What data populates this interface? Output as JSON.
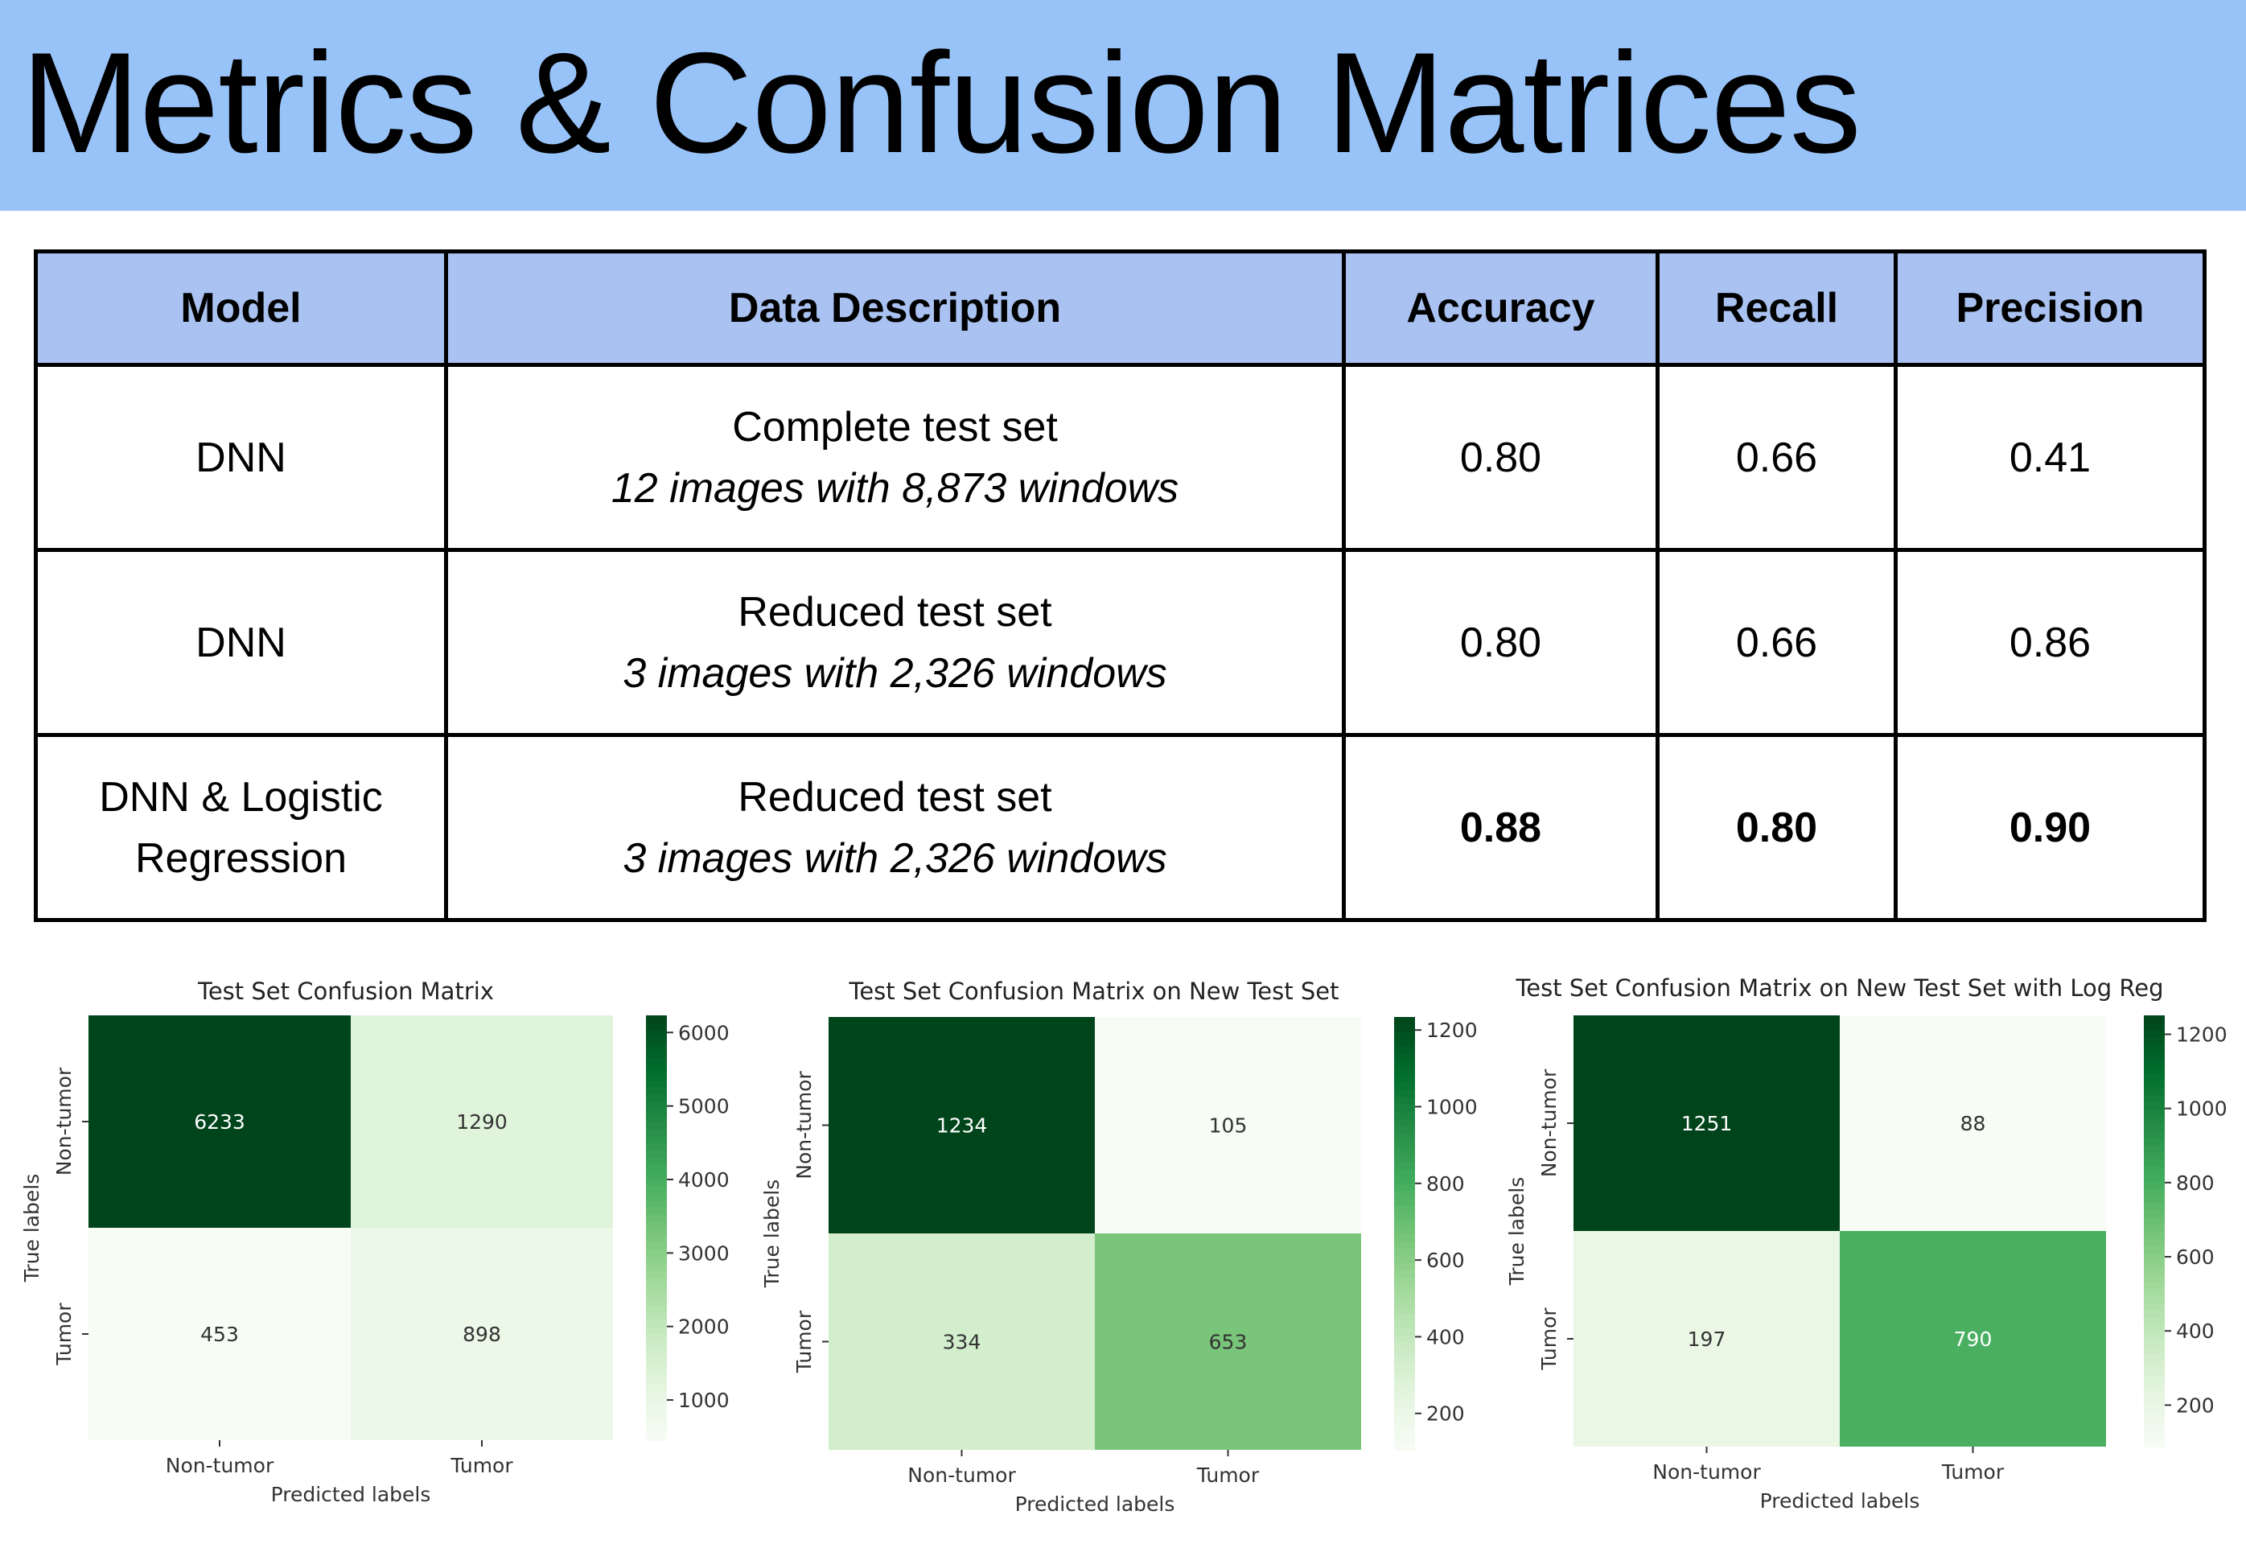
{
  "slide": {
    "title": "Metrics & Confusion Matrices"
  },
  "table": {
    "headers": [
      "Model",
      "Data Description",
      "Accuracy",
      "Recall",
      "Precision"
    ],
    "rows": [
      {
        "model": "DNN",
        "desc_main": "Complete test set",
        "desc_sub": "12 images with 8,873 windows",
        "accuracy": "0.80",
        "recall": "0.66",
        "precision": "0.41",
        "bold": false
      },
      {
        "model": "DNN",
        "desc_main": "Reduced test set",
        "desc_sub": "3 images with 2,326 windows",
        "accuracy": "0.80",
        "recall": "0.66",
        "precision": "0.86",
        "bold": false
      },
      {
        "model": "DNN & Logistic Regression",
        "desc_main": "Reduced test set",
        "desc_sub": "3 images with 2,326 windows",
        "accuracy": "0.88",
        "recall": "0.80",
        "precision": "0.90",
        "bold": true
      }
    ]
  },
  "chart_data": [
    {
      "type": "heatmap",
      "title": "Test Set Confusion Matrix",
      "xlabel": "Predicted labels",
      "ylabel": "True labels",
      "x_categories": [
        "Non-tumor",
        "Tumor"
      ],
      "y_categories": [
        "Non-tumor",
        "Tumor"
      ],
      "values": [
        [
          6233,
          1290
        ],
        [
          453,
          898
        ]
      ],
      "colorbar": {
        "ticks": [
          1000,
          2000,
          3000,
          4000,
          5000,
          6000
        ],
        "range": [
          453,
          6233
        ],
        "colormap": "Greens"
      }
    },
    {
      "type": "heatmap",
      "title": "Test Set Confusion Matrix on New Test Set",
      "xlabel": "Predicted labels",
      "ylabel": "True labels",
      "x_categories": [
        "Non-tumor",
        "Tumor"
      ],
      "y_categories": [
        "Non-tumor",
        "Tumor"
      ],
      "values": [
        [
          1234,
          105
        ],
        [
          334,
          653
        ]
      ],
      "colorbar": {
        "ticks": [
          200,
          400,
          600,
          800,
          1000,
          1200
        ],
        "range": [
          105,
          1234
        ],
        "colormap": "Greens"
      }
    },
    {
      "type": "heatmap",
      "title": "Test Set Confusion Matrix on New Test Set with Log Reg",
      "xlabel": "Predicted labels",
      "ylabel": "True labels",
      "x_categories": [
        "Non-tumor",
        "Tumor"
      ],
      "y_categories": [
        "Non-tumor",
        "Tumor"
      ],
      "values": [
        [
          1251,
          88
        ],
        [
          197,
          790
        ]
      ],
      "colorbar": {
        "ticks": [
          200,
          400,
          600,
          800,
          1000,
          1200
        ],
        "range": [
          88,
          1251
        ],
        "colormap": "Greens"
      }
    }
  ]
}
